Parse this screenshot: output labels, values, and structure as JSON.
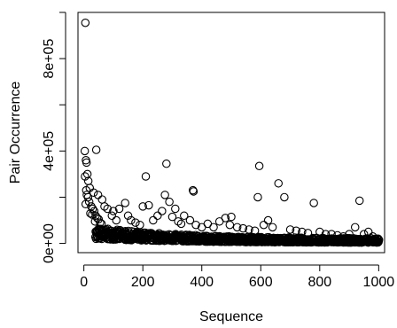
{
  "chart_data": {
    "type": "scatter",
    "title": "",
    "xlabel": "Sequence",
    "ylabel": "Pair Occurrence",
    "xlim": [
      -20,
      1020
    ],
    "ylim": [
      -40000,
      1000000
    ],
    "x_ticks": [
      0,
      200,
      400,
      600,
      800,
      1000
    ],
    "x_tick_labels": [
      "0",
      "200",
      "400",
      "600",
      "800",
      "1000"
    ],
    "y_ticks": [
      0,
      400000,
      800000
    ],
    "y_tick_labels": [
      "0e+00",
      "4e+05",
      "8e+05"
    ],
    "marker": "open-circle",
    "grid": false,
    "legend": "none",
    "series": [
      {
        "points": [
          [
            5,
            955000
          ],
          [
            3,
            400000
          ],
          [
            7,
            360000
          ],
          [
            9,
            350000
          ],
          [
            42,
            405000
          ],
          [
            4,
            290000
          ],
          [
            12,
            300000
          ],
          [
            15,
            270000
          ],
          [
            20,
            240000
          ],
          [
            8,
            230000
          ],
          [
            10,
            210000
          ],
          [
            14,
            200000
          ],
          [
            18,
            180000
          ],
          [
            6,
            170000
          ],
          [
            25,
            160000
          ],
          [
            30,
            150000
          ],
          [
            35,
            140000
          ],
          [
            22,
            130000
          ],
          [
            28,
            125000
          ],
          [
            40,
            120000
          ],
          [
            45,
            110000
          ],
          [
            50,
            105000
          ],
          [
            38,
            95000
          ],
          [
            55,
            90000
          ],
          [
            60,
            85000
          ],
          [
            33,
            220000
          ],
          [
            48,
            210000
          ],
          [
            62,
            190000
          ],
          [
            70,
            160000
          ],
          [
            80,
            150000
          ],
          [
            100,
            140000
          ],
          [
            120,
            150000
          ],
          [
            140,
            175000
          ],
          [
            95,
            120000
          ],
          [
            110,
            100000
          ],
          [
            150,
            120000
          ],
          [
            160,
            100000
          ],
          [
            175,
            90000
          ],
          [
            190,
            80000
          ],
          [
            200,
            160000
          ],
          [
            210,
            290000
          ],
          [
            220,
            165000
          ],
          [
            235,
            100000
          ],
          [
            250,
            120000
          ],
          [
            265,
            140000
          ],
          [
            275,
            210000
          ],
          [
            280,
            345000
          ],
          [
            290,
            180000
          ],
          [
            300,
            115000
          ],
          [
            310,
            150000
          ],
          [
            320,
            95000
          ],
          [
            330,
            85000
          ],
          [
            340,
            120000
          ],
          [
            360,
            100000
          ],
          [
            370,
            230000
          ],
          [
            372,
            225000
          ],
          [
            380,
            80000
          ],
          [
            400,
            70000
          ],
          [
            420,
            85000
          ],
          [
            440,
            70000
          ],
          [
            460,
            95000
          ],
          [
            480,
            110000
          ],
          [
            495,
            80000
          ],
          [
            500,
            115000
          ],
          [
            520,
            70000
          ],
          [
            540,
            65000
          ],
          [
            560,
            60000
          ],
          [
            580,
            55000
          ],
          [
            590,
            200000
          ],
          [
            595,
            335000
          ],
          [
            610,
            80000
          ],
          [
            625,
            100000
          ],
          [
            640,
            70000
          ],
          [
            660,
            260000
          ],
          [
            680,
            200000
          ],
          [
            700,
            60000
          ],
          [
            720,
            55000
          ],
          [
            740,
            50000
          ],
          [
            760,
            45000
          ],
          [
            780,
            175000
          ],
          [
            800,
            50000
          ],
          [
            820,
            40000
          ],
          [
            840,
            40000
          ],
          [
            860,
            35000
          ],
          [
            880,
            30000
          ],
          [
            900,
            40000
          ],
          [
            920,
            70000
          ],
          [
            935,
            185000
          ],
          [
            950,
            40000
          ],
          [
            965,
            50000
          ],
          [
            980,
            30000
          ],
          [
            995,
            20000
          ]
        ],
        "dense_band": {
          "x_start": 40,
          "x_end": 1000,
          "y_upper_start": 70000,
          "y_upper_end": 20000,
          "y_lower_start": 20000,
          "y_lower_end": 3000
        }
      }
    ]
  }
}
